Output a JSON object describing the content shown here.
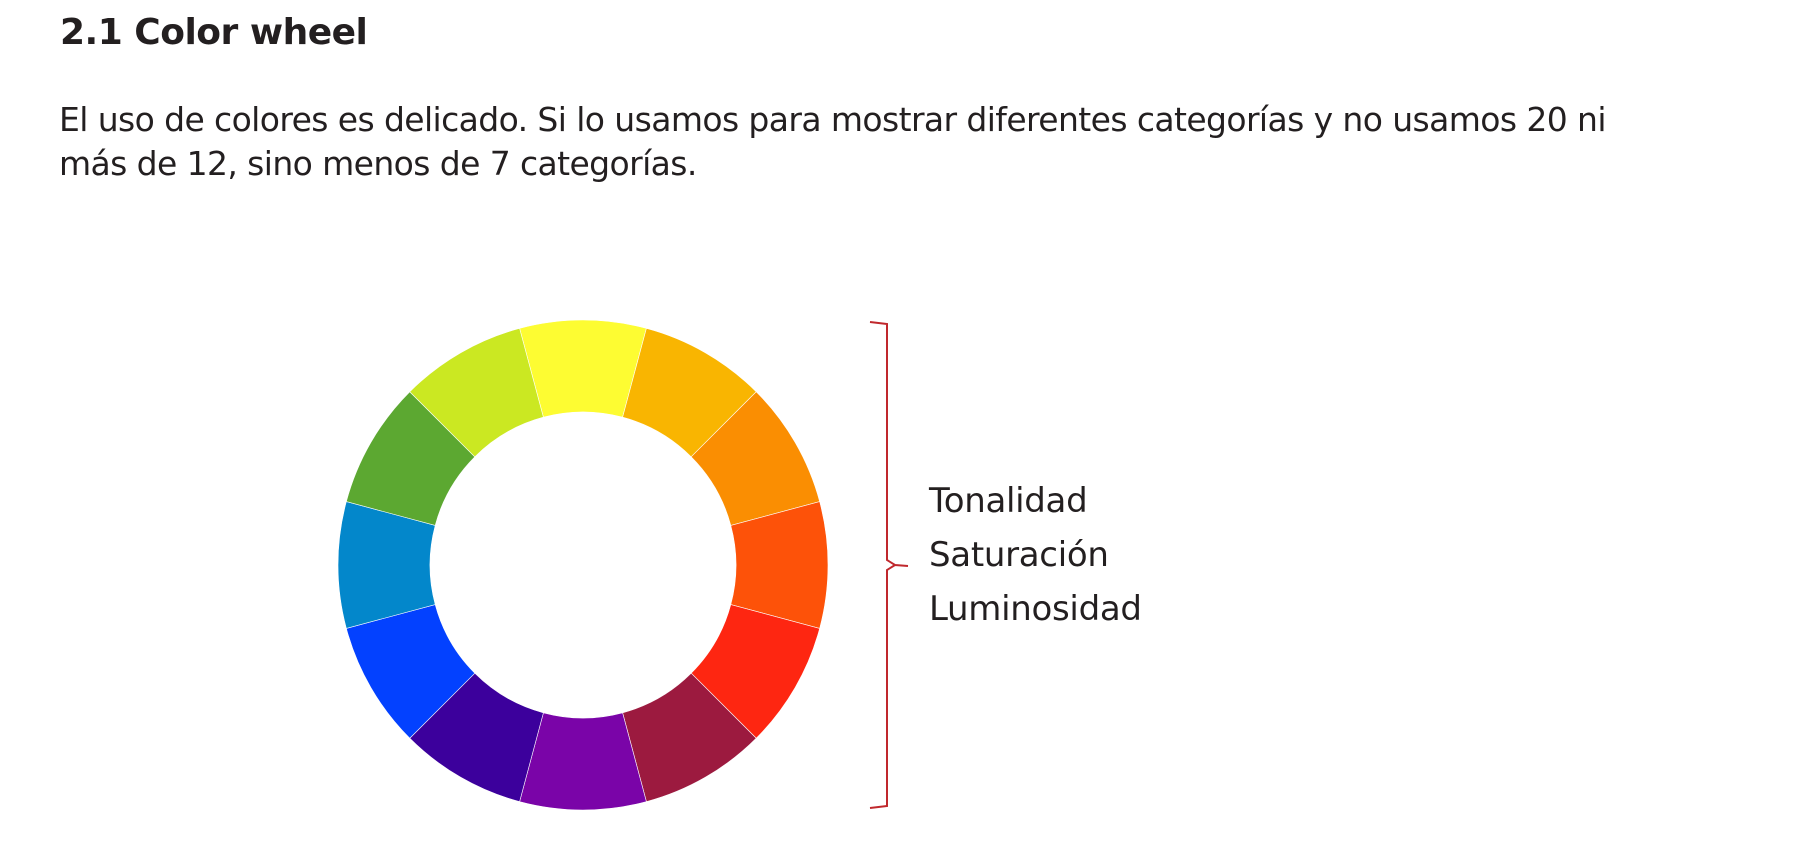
{
  "section": {
    "title": "2.1 Color wheel",
    "paragraph_lines": [
      "El uso de colores es delicado. Si lo usamos para mostrar diferentes categorías y no usamos 20 ni",
      "más de 12, sino menos de 7 categorías."
    ]
  },
  "color_wheel": {
    "segments": [
      "#FDFC32",
      "#F9B501",
      "#FA8E02",
      "#FD5209",
      "#FE2611",
      "#9C1A3F",
      "#7A04A8",
      "#3C009C",
      "#0341FF",
      "#0387CB",
      "#5CA831",
      "#CBE822"
    ],
    "bracket_color": "#c0282d"
  },
  "labels": {
    "hue": "Tonalidad",
    "saturation": "Saturación",
    "luminosity": "Luminosidad"
  }
}
